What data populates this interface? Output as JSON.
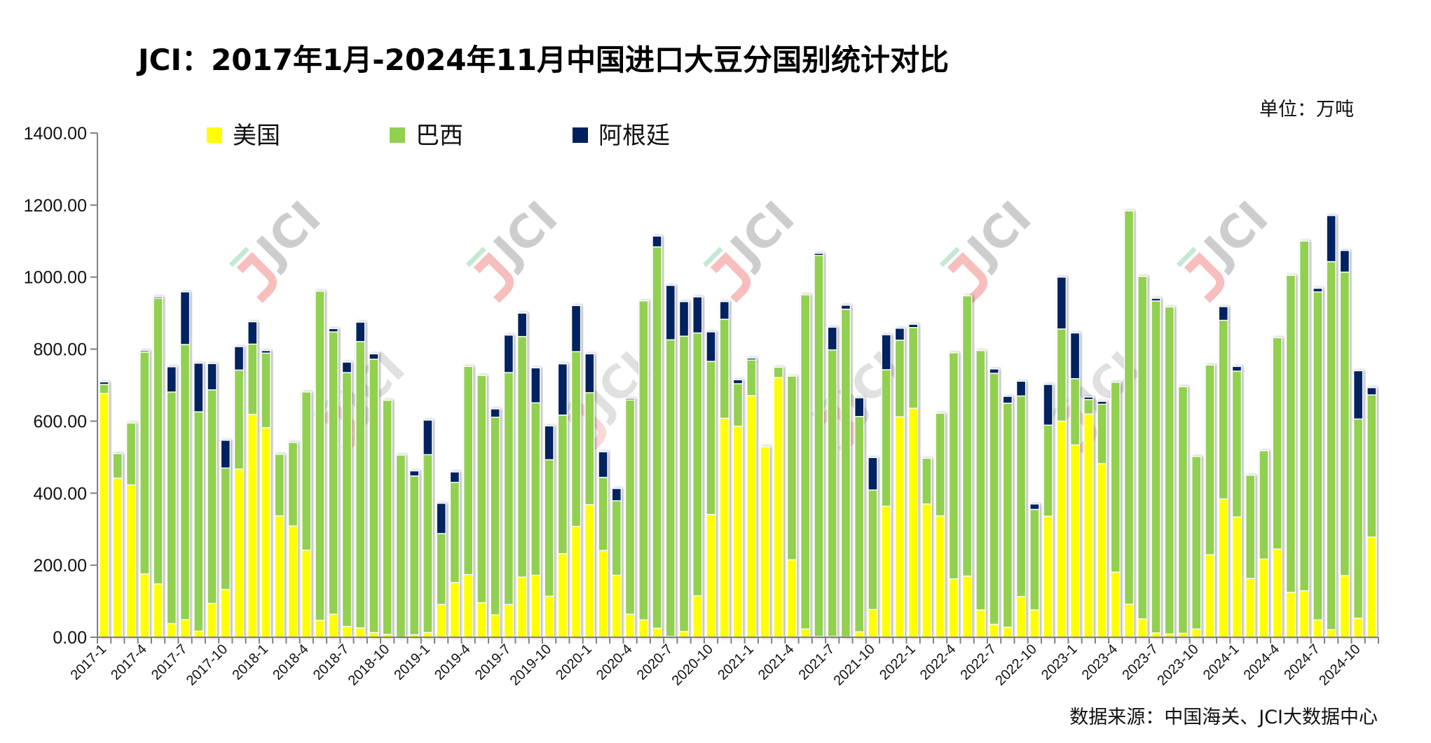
{
  "colors": {
    "us": "#FFFF00",
    "brazil": "#92D050",
    "argentina": "#002060",
    "axis": "#808080"
  },
  "chart_data": {
    "type": "bar",
    "stacked": true,
    "title": "JCI：2017年1月-2024年11月中国进口大豆分国别统计对比",
    "unit_label": "单位：万吨",
    "source": "数据来源：中国海关、JCI大数据中心",
    "watermark": "JCI",
    "xlabel": "",
    "ylabel": "",
    "ylim": [
      0,
      1400
    ],
    "yticks": [
      "0.00",
      "200.00",
      "400.00",
      "600.00",
      "800.00",
      "1000.00",
      "1200.00",
      "1400.00"
    ],
    "grid": false,
    "legend_position": "top-left",
    "categories": [
      "2017-1",
      "2017-2",
      "2017-3",
      "2017-4",
      "2017-5",
      "2017-6",
      "2017-7",
      "2017-8",
      "2017-9",
      "2017-10",
      "2017-11",
      "2017-12",
      "2018-1",
      "2018-2",
      "2018-3",
      "2018-4",
      "2018-5",
      "2018-6",
      "2018-7",
      "2018-8",
      "2018-9",
      "2018-10",
      "2018-11",
      "2018-12",
      "2019-1",
      "2019-2",
      "2019-3",
      "2019-4",
      "2019-5",
      "2019-6",
      "2019-7",
      "2019-8",
      "2019-9",
      "2019-10",
      "2019-11",
      "2019-12",
      "2020-1",
      "2020-2",
      "2020-3",
      "2020-4",
      "2020-5",
      "2020-6",
      "2020-7",
      "2020-8",
      "2020-9",
      "2020-10",
      "2020-11",
      "2020-12",
      "2021-1",
      "2021-2",
      "2021-3",
      "2021-4",
      "2021-5",
      "2021-6",
      "2021-7",
      "2021-8",
      "2021-9",
      "2021-10",
      "2021-11",
      "2021-12",
      "2022-1",
      "2022-2",
      "2022-3",
      "2022-4",
      "2022-5",
      "2022-6",
      "2022-7",
      "2022-8",
      "2022-9",
      "2022-10",
      "2022-11",
      "2022-12",
      "2023-1",
      "2023-2",
      "2023-3",
      "2023-4",
      "2023-5",
      "2023-6",
      "2023-7",
      "2023-8",
      "2023-9",
      "2023-10",
      "2023-11",
      "2023-12",
      "2024-1",
      "2024-2",
      "2024-3",
      "2024-4",
      "2024-5",
      "2024-6",
      "2024-7",
      "2024-8",
      "2024-9",
      "2024-10",
      "2024-11"
    ],
    "xtick_labels": [
      "2017-1",
      "2017-4",
      "2017-7",
      "2017-10",
      "2018-1",
      "2018-4",
      "2018-7",
      "2018-10",
      "2019-1",
      "2019-4",
      "2019-7",
      "2019-10",
      "2020-1",
      "2020-4",
      "2020-7",
      "2020-10",
      "2021-1",
      "2021-4",
      "2021-7",
      "2021-10",
      "2022-1",
      "2022-4",
      "2022-7",
      "2022-10",
      "2023-1",
      "2023-4",
      "2023-7",
      "2023-10",
      "2024-1",
      "2024-4",
      "2024-7",
      "2024-10"
    ],
    "series": [
      {
        "name": "美国",
        "key": "us",
        "values": [
          677,
          442,
          423,
          176,
          148,
          38,
          49,
          17,
          94,
          133,
          467,
          619,
          582,
          337,
          309,
          242,
          47,
          64,
          30,
          26,
          13,
          8,
          0,
          7,
          13,
          91,
          152,
          174,
          96,
          62,
          91,
          167,
          172,
          114,
          232,
          308,
          368,
          241,
          172,
          64,
          48,
          25,
          2,
          16,
          115,
          341,
          608,
          586,
          671,
          529,
          721,
          215,
          23,
          2,
          2,
          1,
          15,
          77,
          364,
          612,
          636,
          370,
          337,
          162,
          170,
          76,
          36,
          28,
          113,
          76,
          336,
          600,
          534,
          620,
          482,
          181,
          92,
          51,
          12,
          9,
          11,
          23,
          229,
          384,
          334,
          163,
          217,
          245,
          125,
          129,
          48,
          21,
          171,
          53,
          278
        ]
      },
      {
        "name": "巴西",
        "key": "brazil",
        "values": [
          25,
          68,
          172,
          616,
          793,
          643,
          764,
          609,
          593,
          337,
          275,
          195,
          207,
          171,
          232,
          439,
          914,
          784,
          705,
          795,
          759,
          650,
          506,
          441,
          494,
          197,
          278,
          578,
          631,
          549,
          644,
          668,
          479,
          379,
          385,
          485,
          311,
          203,
          207,
          595,
          886,
          1059,
          824,
          820,
          730,
          425,
          275,
          118,
          99,
          0,
          29,
          510,
          928,
          1058,
          796,
          910,
          598,
          332,
          379,
          213,
          224,
          127,
          285,
          628,
          778,
          720,
          697,
          622,
          557,
          279,
          253,
          256,
          184,
          40,
          165,
          527,
          1092,
          951,
          922,
          908,
          685,
          479,
          527,
          496,
          405,
          287,
          301,
          587,
          880,
          971,
          911,
          1022,
          843,
          553,
          395
        ]
      },
      {
        "name": "阿根廷",
        "key": "argentina",
        "values": [
          7,
          0,
          0,
          4,
          4,
          70,
          146,
          135,
          73,
          77,
          65,
          62,
          7,
          0,
          0,
          0,
          0,
          9,
          29,
          54,
          15,
          0,
          0,
          14,
          96,
          84,
          29,
          0,
          0,
          23,
          104,
          65,
          97,
          94,
          142,
          128,
          108,
          71,
          34,
          4,
          0,
          30,
          151,
          96,
          100,
          82,
          49,
          11,
          5,
          0,
          0,
          0,
          0,
          6,
          63,
          11,
          52,
          90,
          97,
          33,
          9,
          0,
          0,
          0,
          0,
          0,
          12,
          19,
          41,
          15,
          113,
          144,
          127,
          7,
          8,
          0,
          0,
          0,
          7,
          0,
          0,
          0,
          0,
          38,
          13,
          0,
          0,
          0,
          0,
          0,
          10,
          128,
          60,
          134,
          20
        ]
      }
    ]
  }
}
